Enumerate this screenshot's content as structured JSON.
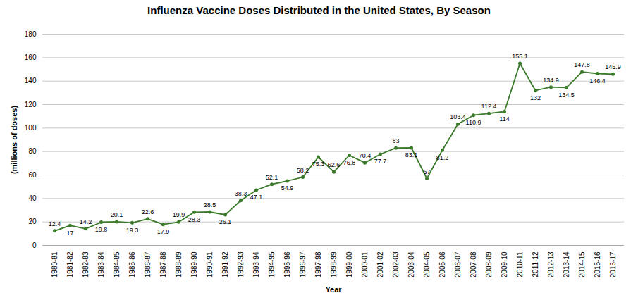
{
  "chart_data": {
    "type": "line",
    "title": "Influenza Vaccine Doses Distributed in the United States, By Season",
    "xlabel": "Year",
    "ylabel": "(millions of doses)",
    "categories": [
      "1980-81",
      "1981-82",
      "1982-83",
      "1983-84",
      "1984-85",
      "1985-86",
      "1986-87",
      "1987-88",
      "1988-89",
      "1989-90",
      "1990-91",
      "1991-92",
      "1992-93",
      "1993-94",
      "1994-95",
      "1995-96",
      "1996-97",
      "1997-98",
      "1998-99",
      "1999-00",
      "2000-01",
      "2001-02",
      "2002-03",
      "2003-04",
      "2004-05",
      "2005-06",
      "2006-07",
      "2007-08",
      "2008-09",
      "2009-10",
      "2010-11",
      "2011-12",
      "2012-13",
      "2013-14",
      "2014-15",
      "2015-16",
      "2016-17"
    ],
    "values": [
      12.4,
      17,
      14.2,
      19.8,
      20.1,
      19.3,
      22.6,
      17.9,
      19.9,
      28.3,
      28.5,
      26.1,
      38.3,
      47.1,
      52.1,
      54.9,
      58.2,
      75.3,
      62.6,
      76.8,
      70.4,
      77.7,
      83,
      83.1,
      57,
      81.2,
      103.4,
      110.9,
      112.4,
      114,
      155.1,
      132,
      134.9,
      134.5,
      147.8,
      146.4,
      145.9
    ],
    "color": "#3a7a2a",
    "marker": "circle",
    "ylim": [
      0,
      180
    ],
    "yticks": [
      0,
      20,
      40,
      60,
      80,
      100,
      120,
      140,
      160,
      180
    ],
    "grid": true,
    "data_labels": true
  }
}
